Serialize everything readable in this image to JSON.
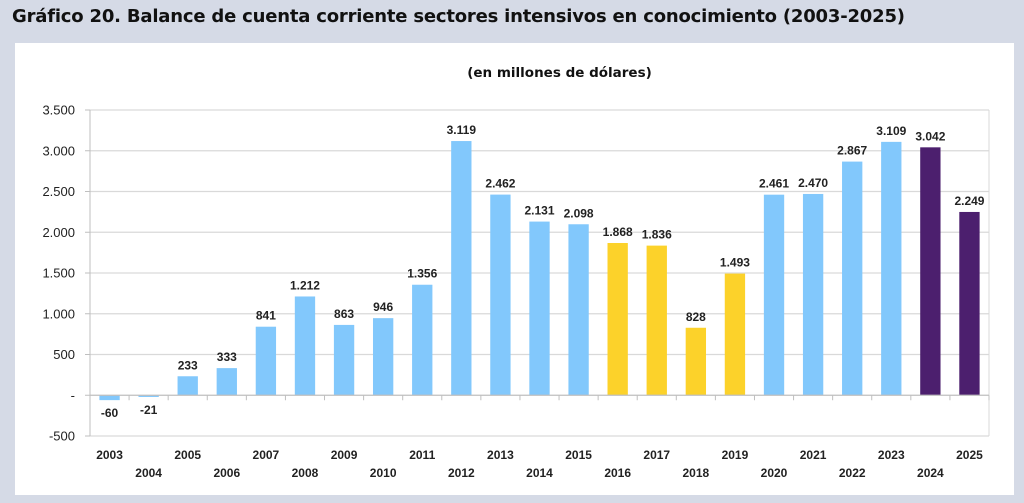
{
  "figure": {
    "title": "Gráfico 20. Balance de cuenta corriente sectores intensivos en conocimiento (2003-2025)"
  },
  "chart_data": {
    "type": "bar",
    "title": "Gráfico 20. Balance de cuenta corriente sectores intensivos en conocimiento (2003-2025)",
    "subtitle": "(en millones de dólares)",
    "xlabel": "",
    "ylabel": "",
    "ylim": [
      -500,
      3500
    ],
    "yticks": [
      -500,
      0,
      500,
      1000,
      1500,
      2000,
      2500,
      3000,
      3500
    ],
    "ytick_labels": [
      "-500",
      "-",
      "500",
      "1.000",
      "1.500",
      "2.000",
      "2.500",
      "3.000",
      "3.500"
    ],
    "grid": true,
    "legend": "none",
    "categories": [
      "2003",
      "2004",
      "2005",
      "2006",
      "2007",
      "2008",
      "2009",
      "2010",
      "2011",
      "2012",
      "2013",
      "2014",
      "2015",
      "2016",
      "2017",
      "2018",
      "2019",
      "2020",
      "2021",
      "2022",
      "2023",
      "2024",
      "2025"
    ],
    "values": [
      -60,
      -21,
      233,
      333,
      841,
      1212,
      863,
      946,
      1356,
      3119,
      2462,
      2131,
      2098,
      1868,
      1836,
      828,
      1493,
      2461,
      2470,
      2867,
      3109,
      3042,
      2249
    ],
    "value_labels": [
      "-60",
      "-21",
      "233",
      "333",
      "841",
      "1.212",
      "863",
      "946",
      "1.356",
      "3.119",
      "2.462",
      "2.131",
      "2.098",
      "1.868",
      "1.836",
      "828",
      "1.493",
      "2.461",
      "2.470",
      "2.867",
      "3.109",
      "3.042",
      "2.249"
    ],
    "bar_groups": [
      "blue",
      "blue",
      "blue",
      "blue",
      "blue",
      "blue",
      "blue",
      "blue",
      "blue",
      "blue",
      "blue",
      "blue",
      "blue",
      "yellow",
      "yellow",
      "yellow",
      "yellow",
      "blue",
      "blue",
      "blue",
      "blue",
      "purple",
      "purple"
    ],
    "colors": {
      "blue": "#82c8fc",
      "yellow": "#fcd22a",
      "purple": "#4c1f6e",
      "grid": "#d9d9d9",
      "axis": "#bfbfbf"
    }
  }
}
